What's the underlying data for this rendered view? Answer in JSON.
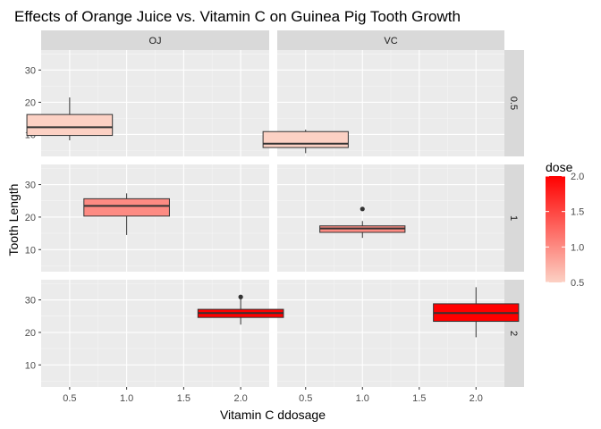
{
  "chart_data": {
    "type": "boxplot",
    "title": "Effects of Orange Juice vs. Vitamin C on Guinea Pig Tooth Growth",
    "xlabel": "Vitamin C ddosage",
    "ylabel": "Tooth Length",
    "facet_cols": [
      "OJ",
      "VC"
    ],
    "facet_rows": [
      "0.5",
      "1",
      "2"
    ],
    "x_ticks": [
      "0.5",
      "1.0",
      "1.5",
      "2.0"
    ],
    "x_tick_values": [
      0.5,
      1.0,
      1.5,
      2.0
    ],
    "xlim": [
      0.25,
      2.25
    ],
    "y_ticks": [
      "10",
      "20",
      "30"
    ],
    "y_tick_values": [
      10,
      20,
      30
    ],
    "ylim": [
      3.2,
      36.2
    ],
    "grid": true,
    "fill_color_low": "#fcd1c4",
    "fill_color_high": "#ff0000",
    "panel_bg": "#ebebeb",
    "strip_bg": "#d9d9d9",
    "boxes": [
      {
        "supp": "OJ",
        "dose": 0.5,
        "row": 0,
        "col": 0,
        "min": 8.2,
        "q1": 9.7,
        "median": 12.25,
        "q3": 16.2,
        "max": 21.5,
        "outliers": []
      },
      {
        "supp": "VC",
        "dose": 0.5,
        "row": 0,
        "col": 1,
        "min": 4.2,
        "q1": 5.95,
        "median": 7.15,
        "q3": 10.9,
        "max": 11.5,
        "outliers": []
      },
      {
        "supp": "OJ",
        "dose": 1.0,
        "row": 1,
        "col": 0,
        "min": 14.5,
        "q1": 20.3,
        "median": 23.45,
        "q3": 25.65,
        "max": 27.3,
        "outliers": []
      },
      {
        "supp": "VC",
        "dose": 1.0,
        "row": 1,
        "col": 1,
        "min": 13.6,
        "q1": 15.3,
        "median": 16.5,
        "q3": 17.3,
        "max": 18.8,
        "outliers": [
          22.5
        ]
      },
      {
        "supp": "OJ",
        "dose": 2.0,
        "row": 2,
        "col": 0,
        "min": 22.4,
        "q1": 24.6,
        "median": 25.95,
        "q3": 27.1,
        "max": 30.9,
        "outliers": [
          30.9
        ]
      },
      {
        "supp": "VC",
        "dose": 2.0,
        "row": 2,
        "col": 1,
        "min": 18.5,
        "q1": 23.4,
        "median": 25.95,
        "q3": 28.8,
        "max": 33.9,
        "outliers": []
      }
    ],
    "legend": {
      "title": "dose",
      "position": "right",
      "ticks": [
        "0.5",
        "1.0",
        "1.5",
        "2.0"
      ],
      "tick_values": [
        0.5,
        1.0,
        1.5,
        2.0
      ],
      "range": [
        0.5,
        2.0
      ]
    }
  }
}
